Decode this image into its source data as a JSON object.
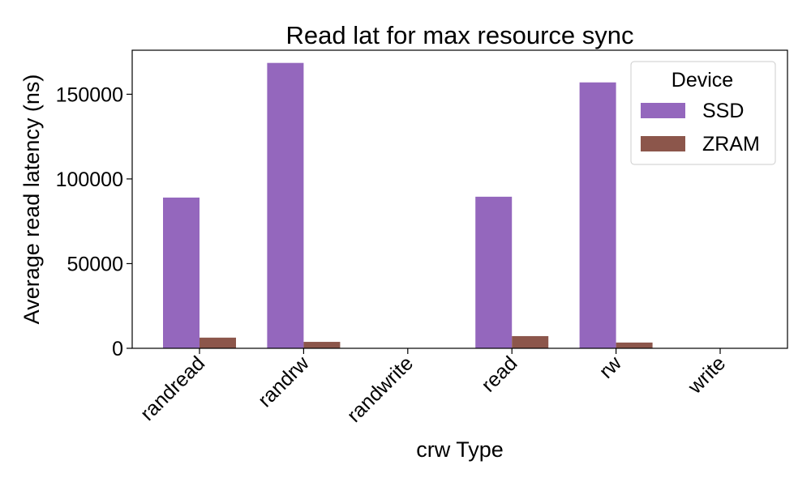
{
  "chart_data": {
    "type": "bar",
    "title": "Read lat for max resource sync",
    "xlabel": "crw Type",
    "ylabel": "Average read latency (ns)",
    "categories": [
      "randread",
      "randrw",
      "randwrite",
      "read",
      "rw",
      "write"
    ],
    "series": [
      {
        "name": "SSD",
        "color": "#9467bd",
        "values": [
          89000,
          168500,
          0,
          89500,
          157000,
          0
        ]
      },
      {
        "name": "ZRAM",
        "color": "#8c564b",
        "values": [
          6300,
          3800,
          0,
          7200,
          3400,
          0
        ]
      }
    ],
    "ylim": [
      0,
      176000
    ],
    "yticks": [
      0,
      50000,
      100000,
      150000
    ],
    "ytick_labels": [
      "0",
      "50000",
      "100000",
      "150000"
    ],
    "legend": {
      "title": "Device",
      "position": "top-right"
    },
    "grid": false
  }
}
